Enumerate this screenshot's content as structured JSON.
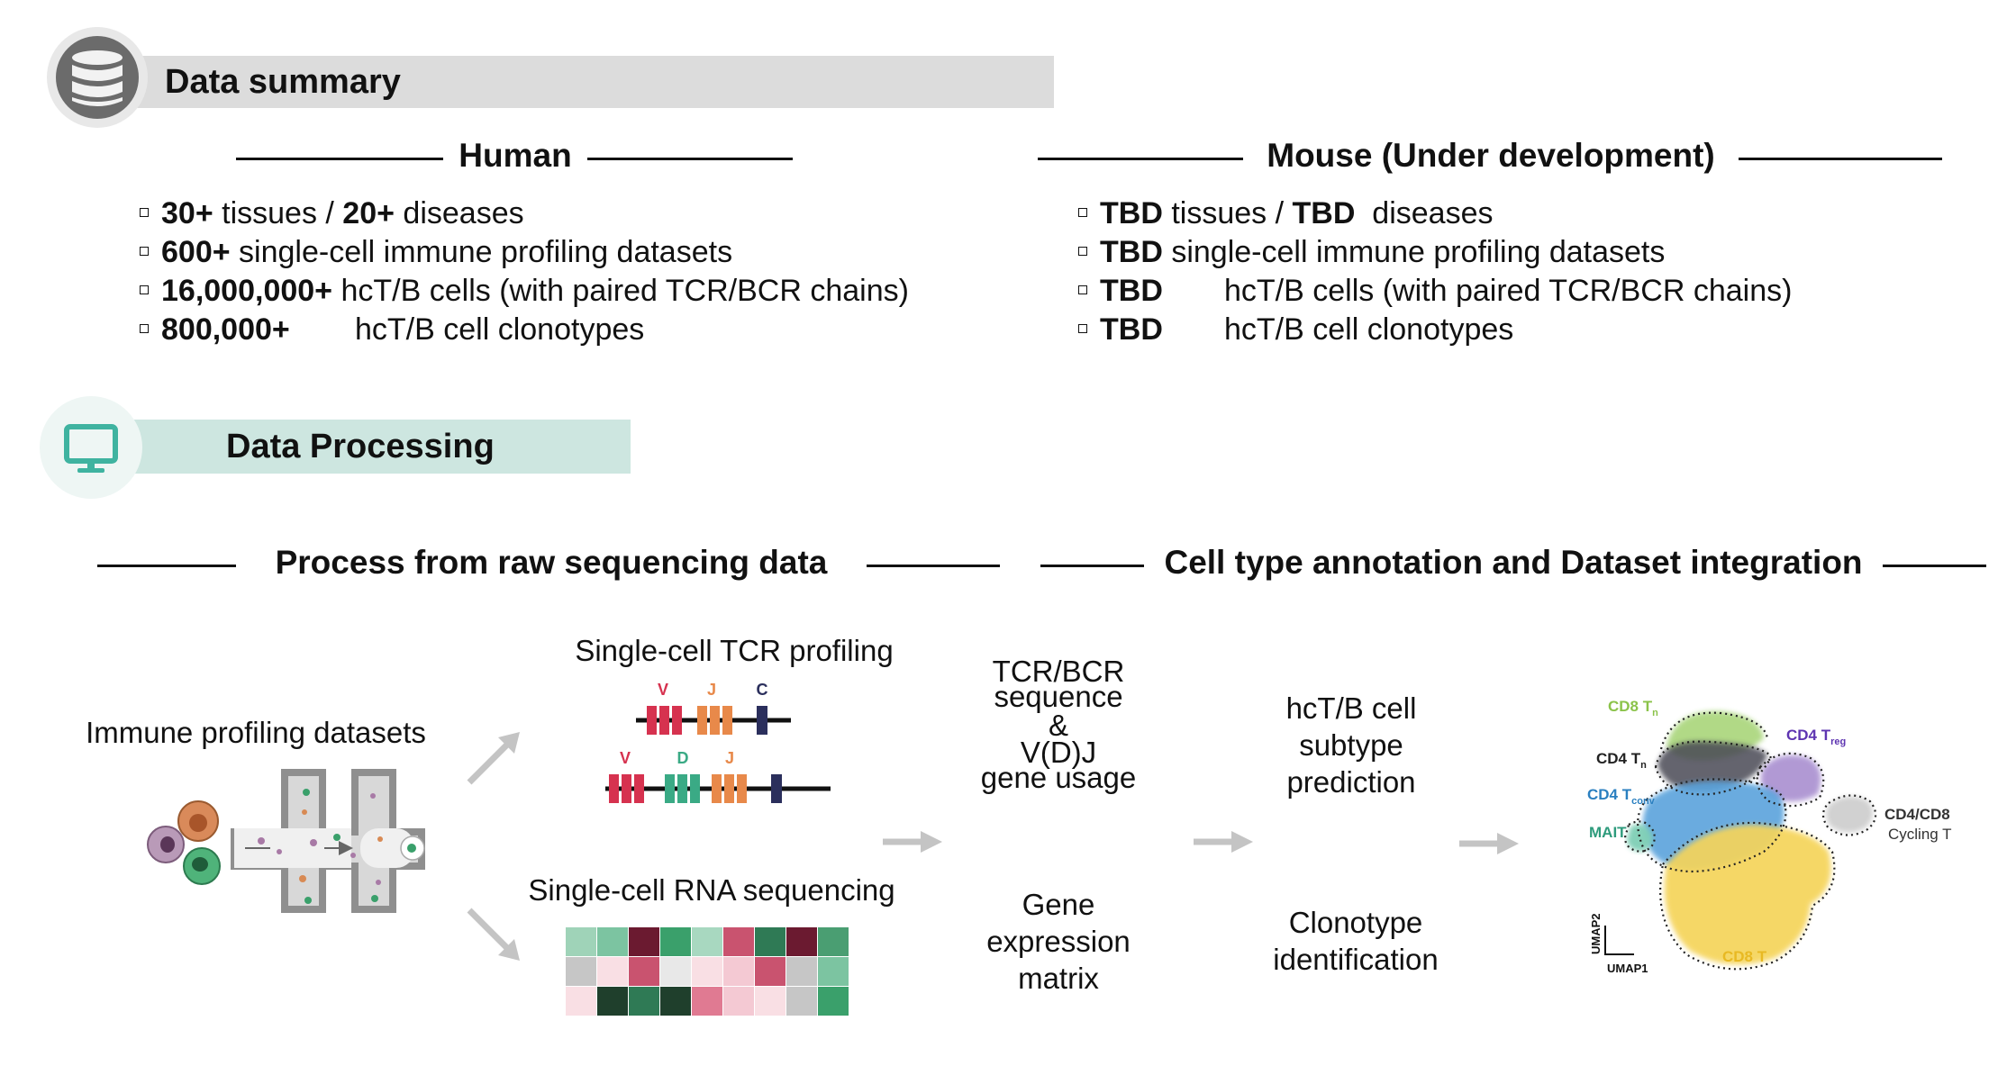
{
  "summary": {
    "title": "Data summary",
    "human": {
      "heading": "Human",
      "items": [
        {
          "a": "30+",
          "b": " tissues / ",
          "c": "20+",
          "d": " diseases"
        },
        {
          "a": "600+",
          "b": " single-cell immune profiling datasets"
        },
        {
          "a": "16,000,000+",
          "b": " hcT/B cells (with paired TCR/BCR chains)"
        },
        {
          "a": "800,000+",
          "b": "hcT/B cell clonotypes"
        }
      ]
    },
    "mouse": {
      "heading": "Mouse (Under development)",
      "items": [
        {
          "a": "TBD",
          "b": " tissues / ",
          "c": "TBD",
          "d": "  diseases"
        },
        {
          "a": "TBD",
          "b": " single-cell immune profiling datasets"
        },
        {
          "a": "TBD",
          "b": "hcT/B cells (with paired TCR/BCR chains)"
        },
        {
          "a": "TBD",
          "b": "hcT/B cell clonotypes"
        }
      ]
    }
  },
  "processing": {
    "title": "Data Processing",
    "left_heading": "Process from raw sequencing data",
    "right_heading": "Cell type annotation and Dataset integration",
    "input_label": "Immune profiling datasets",
    "tcr_label": "Single-cell TCR profiling",
    "rna_label": "Single-cell RNA sequencing",
    "tcr_genes_top": [
      "V",
      "J",
      "C"
    ],
    "tcr_genes_bottom": [
      "V",
      "D",
      "J"
    ],
    "mid_top": [
      "TCR/BCR",
      "sequence",
      "&",
      "V(D)J",
      "gene usage"
    ],
    "mid_bottom": [
      "Gene",
      "expression",
      "matrix"
    ],
    "right_top": [
      "hcT/B cell",
      "subtype",
      "prediction"
    ],
    "right_bottom": [
      "Clonotype",
      "identification"
    ],
    "umap": {
      "clusters": [
        {
          "base": "CD8 T",
          "sub": "n",
          "color": "#8bc34a"
        },
        {
          "base": "CD4 T",
          "sub": "reg",
          "color": "#5e35b1"
        },
        {
          "base": "CD4 T",
          "sub": "n",
          "color": "#222222"
        },
        {
          "base": "CD4 T",
          "sub": "conv",
          "color": "#2a7fc0"
        },
        {
          "base": "MAIT",
          "sub": "",
          "color": "#2e9b7c"
        },
        {
          "base": "CD8 T",
          "sub": "",
          "color": "#e8b923"
        }
      ],
      "cycling_line1": "CD4/CD8",
      "cycling_line2": "Cycling T",
      "xlabel": "UMAP1",
      "ylabel": "UMAP2"
    }
  },
  "colors": {
    "summary_banner": "#dcdcdc",
    "processing_banner": "#cde6e0",
    "arrow": "#c4c4c4",
    "gene_v": "#d6324f",
    "gene_d": "#3aaa85",
    "gene_j": "#e8894a",
    "gene_c": "#2b2f5c"
  }
}
